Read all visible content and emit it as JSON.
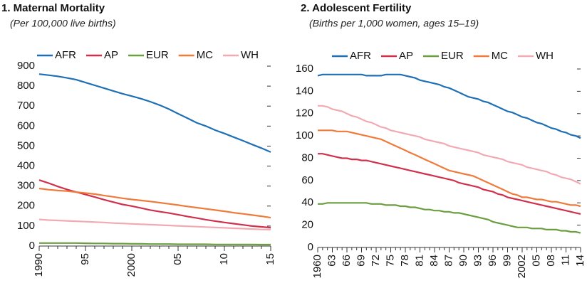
{
  "chart_data": [
    {
      "type": "line",
      "title": "1. Maternal Mortality",
      "subtitle": "(Per 100,000 live births)",
      "x": [
        1990,
        1991,
        1992,
        1993,
        1994,
        1995,
        1996,
        1997,
        1998,
        1999,
        2000,
        2001,
        2002,
        2003,
        2004,
        2005,
        2006,
        2007,
        2008,
        2009,
        2010,
        2011,
        2012,
        2013,
        2014,
        2015
      ],
      "xlim": [
        1990,
        2015
      ],
      "xticks": [
        1990,
        {
          "value": 1995,
          "label": "95"
        },
        2000,
        {
          "value": 2005,
          "label": "05"
        },
        {
          "value": 2010,
          "label": "10"
        },
        {
          "value": 2015,
          "label": "15"
        }
      ],
      "ylim": [
        0,
        900
      ],
      "yticks": [
        0,
        100,
        200,
        300,
        400,
        500,
        600,
        700,
        800,
        900
      ],
      "legend": "top",
      "series": [
        {
          "name": "AFR",
          "color": "#1f6fb4",
          "values": [
            860,
            855,
            849,
            841,
            832,
            818,
            804,
            790,
            776,
            762,
            750,
            737,
            722,
            705,
            685,
            662,
            640,
            617,
            600,
            580,
            563,
            545,
            527,
            508,
            490,
            470
          ]
        },
        {
          "name": "AP",
          "color": "#d1304c",
          "values": [
            330,
            315,
            298,
            283,
            270,
            258,
            245,
            232,
            220,
            208,
            200,
            190,
            180,
            172,
            165,
            157,
            148,
            140,
            132,
            125,
            118,
            112,
            106,
            100,
            96,
            92
          ]
        },
        {
          "name": "EUR",
          "color": "#6a9e3f",
          "values": [
            15,
            15,
            15,
            15,
            15,
            14,
            13,
            13,
            12,
            12,
            11,
            11,
            10,
            10,
            10,
            9,
            9,
            9,
            9,
            8,
            8,
            8,
            8,
            8,
            7,
            7
          ]
        },
        {
          "name": "MC",
          "color": "#f07a3a",
          "values": [
            288,
            282,
            278,
            275,
            270,
            265,
            260,
            253,
            246,
            239,
            233,
            228,
            223,
            217,
            211,
            205,
            198,
            192,
            186,
            180,
            174,
            167,
            161,
            155,
            149,
            142
          ]
        },
        {
          "name": "WH",
          "color": "#f2a9b3",
          "values": [
            133,
            130,
            128,
            126,
            124,
            122,
            120,
            118,
            115,
            113,
            111,
            109,
            107,
            105,
            103,
            101,
            99,
            97,
            95,
            93,
            91,
            89,
            87,
            85,
            83,
            82
          ]
        }
      ]
    },
    {
      "type": "line",
      "title": "2. Adolescent Fertility",
      "subtitle": "(Births per 1,000 women, ages 15–19)",
      "x": [
        1960,
        1961,
        1962,
        1963,
        1964,
        1965,
        1966,
        1967,
        1968,
        1969,
        1970,
        1971,
        1972,
        1973,
        1974,
        1975,
        1976,
        1977,
        1978,
        1979,
        1980,
        1981,
        1982,
        1983,
        1984,
        1985,
        1986,
        1987,
        1988,
        1989,
        1990,
        1991,
        1992,
        1993,
        1994,
        1995,
        1996,
        1997,
        1998,
        1999,
        2000,
        2001,
        2002,
        2003,
        2004,
        2005,
        2006,
        2007,
        2008,
        2009,
        2010,
        2011,
        2012,
        2013,
        2014
      ],
      "xlim": [
        1960,
        2014
      ],
      "xticks": [
        1960,
        {
          "value": 1963,
          "label": "63"
        },
        {
          "value": 1966,
          "label": "66"
        },
        {
          "value": 1969,
          "label": "69"
        },
        {
          "value": 1972,
          "label": "72"
        },
        {
          "value": 1975,
          "label": "75"
        },
        {
          "value": 1978,
          "label": "78"
        },
        {
          "value": 1981,
          "label": "81"
        },
        {
          "value": 1984,
          "label": "84"
        },
        {
          "value": 1987,
          "label": "87"
        },
        {
          "value": 1990,
          "label": "90"
        },
        {
          "value": 1993,
          "label": "93"
        },
        {
          "value": 1996,
          "label": "96"
        },
        {
          "value": 1999,
          "label": "99"
        },
        2002,
        {
          "value": 2005,
          "label": "05"
        },
        {
          "value": 2008,
          "label": "08"
        },
        {
          "value": 2011,
          "label": "11"
        },
        {
          "value": 2014,
          "label": "14"
        }
      ],
      "ylim": [
        0,
        160
      ],
      "yticks": [
        0,
        20,
        40,
        60,
        80,
        100,
        120,
        140,
        160
      ],
      "legend": "top",
      "series": [
        {
          "name": "AFR",
          "color": "#1f6fb4",
          "values": [
            154,
            155,
            155,
            155,
            155,
            155,
            155,
            155,
            155,
            155,
            154,
            154,
            154,
            154,
            155,
            155,
            155,
            155,
            154,
            153,
            152,
            150,
            149,
            148,
            147,
            146,
            144,
            143,
            141,
            139,
            137,
            135,
            134,
            133,
            131,
            130,
            128,
            126,
            124,
            122,
            121,
            119,
            117,
            116,
            114,
            112,
            111,
            109,
            107,
            106,
            104,
            103,
            101,
            100,
            98
          ]
        },
        {
          "name": "AP",
          "color": "#d1304c",
          "values": [
            84,
            84,
            83,
            82,
            81,
            80,
            80,
            79,
            79,
            78,
            78,
            77,
            76,
            75,
            74,
            73,
            72,
            71,
            70,
            69,
            68,
            67,
            66,
            65,
            64,
            63,
            62,
            61,
            60,
            58,
            57,
            56,
            55,
            54,
            52,
            51,
            50,
            48,
            47,
            45,
            44,
            43,
            42,
            41,
            40,
            39,
            38,
            37,
            36,
            35,
            34,
            33,
            32,
            31,
            30
          ]
        },
        {
          "name": "EUR",
          "color": "#6a9e3f",
          "values": [
            39,
            39,
            40,
            40,
            40,
            40,
            40,
            40,
            40,
            40,
            40,
            39,
            39,
            39,
            38,
            38,
            38,
            37,
            37,
            36,
            36,
            35,
            34,
            34,
            33,
            33,
            32,
            32,
            31,
            31,
            30,
            29,
            28,
            27,
            26,
            25,
            23,
            22,
            21,
            20,
            19,
            18,
            18,
            18,
            17,
            17,
            17,
            16,
            16,
            16,
            15,
            15,
            14,
            14,
            13
          ]
        },
        {
          "name": "MC",
          "color": "#f07a3a",
          "values": [
            105,
            105,
            105,
            105,
            104,
            104,
            104,
            103,
            102,
            101,
            100,
            99,
            98,
            97,
            95,
            93,
            91,
            89,
            87,
            85,
            83,
            81,
            79,
            77,
            75,
            73,
            71,
            69,
            68,
            67,
            66,
            65,
            64,
            62,
            60,
            58,
            56,
            54,
            52,
            50,
            48,
            47,
            45,
            45,
            44,
            43,
            43,
            42,
            41,
            41,
            40,
            39,
            38,
            38,
            37
          ]
        },
        {
          "name": "WH",
          "color": "#f2a9b3",
          "values": [
            127,
            127,
            126,
            124,
            123,
            122,
            120,
            118,
            117,
            115,
            113,
            112,
            110,
            108,
            107,
            105,
            104,
            103,
            102,
            101,
            100,
            99,
            97,
            96,
            95,
            94,
            93,
            91,
            90,
            89,
            88,
            87,
            86,
            85,
            83,
            82,
            81,
            80,
            79,
            77,
            76,
            75,
            74,
            72,
            71,
            70,
            69,
            68,
            66,
            65,
            63,
            62,
            61,
            59,
            57
          ]
        }
      ]
    }
  ]
}
